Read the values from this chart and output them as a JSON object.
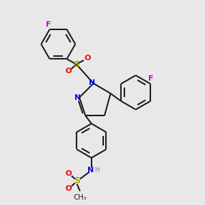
{
  "bg_color": "#e8e8e8",
  "bond_color": "#1a1a1a",
  "line_width": 1.5,
  "figsize": [
    3.0,
    3.0
  ],
  "dpi": 100,
  "colors": {
    "F": "#cc00cc",
    "N": "#0000ee",
    "O": "#ee0000",
    "S": "#aaaa00",
    "H": "#888888",
    "C": "#1a1a1a"
  }
}
